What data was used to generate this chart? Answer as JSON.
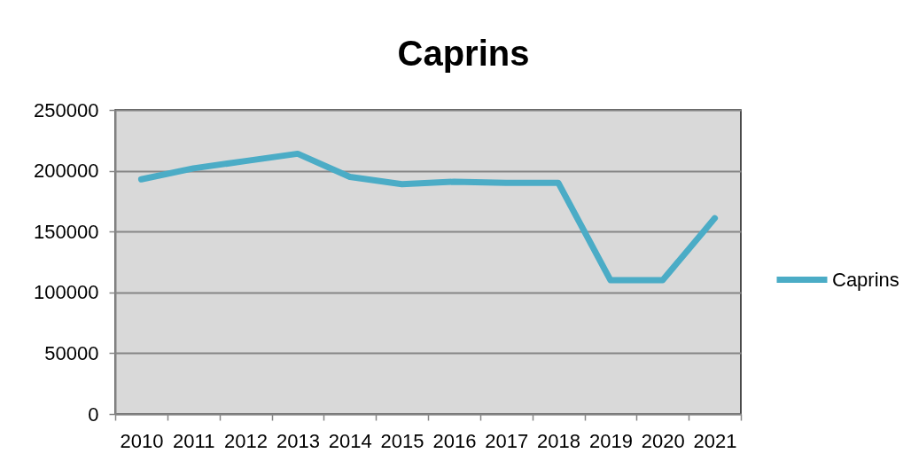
{
  "chart_data": {
    "type": "line",
    "title": "Caprins",
    "categories": [
      "2010",
      "2011",
      "2012",
      "2013",
      "2014",
      "2015",
      "2016",
      "2017",
      "2018",
      "2019",
      "2020",
      "2021"
    ],
    "series": [
      {
        "name": "Caprins",
        "color": "#4bacc6",
        "values": [
          193000,
          202000,
          208000,
          214000,
          195000,
          189000,
          191000,
          190000,
          190000,
          110000,
          110000,
          161000
        ]
      }
    ],
    "ylim": [
      0,
      250000
    ],
    "yticks": [
      0,
      50000,
      100000,
      150000,
      200000,
      250000
    ],
    "grid": "y",
    "legend": "right"
  }
}
